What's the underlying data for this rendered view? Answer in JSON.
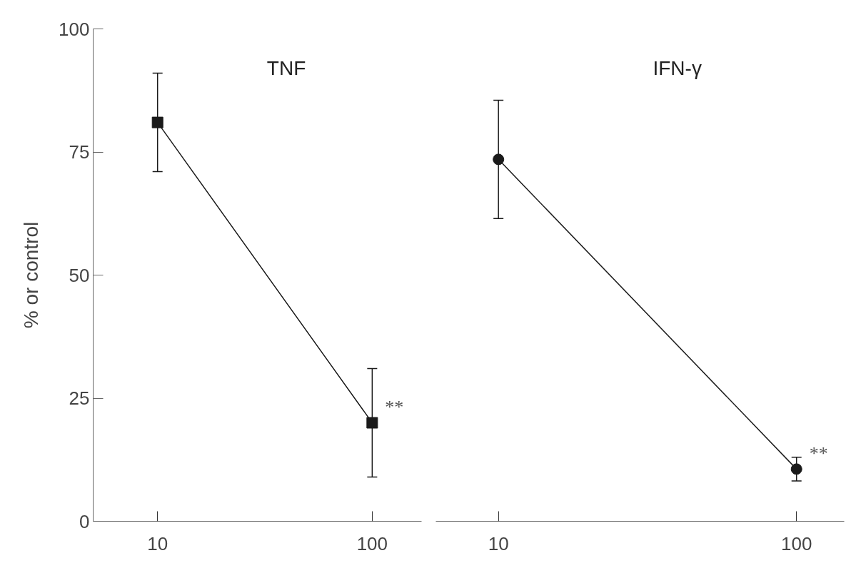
{
  "chart_data": [
    {
      "type": "line",
      "title": "TNF",
      "ylabel": "% or control",
      "categories": [
        "10",
        "100"
      ],
      "series": [
        {
          "color": "#1a1a1a",
          "values": [
            81,
            20
          ],
          "errors": [
            10,
            11
          ]
        }
      ],
      "marker": "square",
      "ylim": [
        0,
        100
      ],
      "yticks": [
        0,
        25,
        50,
        75,
        100
      ],
      "grid": false,
      "annotations": [
        "**"
      ]
    },
    {
      "type": "line",
      "title": "IFN-γ",
      "categories": [
        "10",
        "100"
      ],
      "series": [
        {
          "color": "#1a1a1a",
          "values": [
            73.5,
            10.6
          ],
          "errors": [
            12,
            2.4
          ]
        }
      ],
      "marker": "circle",
      "ylim": [
        0,
        100
      ],
      "yticks": [
        0,
        25,
        50,
        75,
        100
      ],
      "grid": false,
      "tick_labels": "x",
      "annotations": [
        "**"
      ]
    }
  ]
}
